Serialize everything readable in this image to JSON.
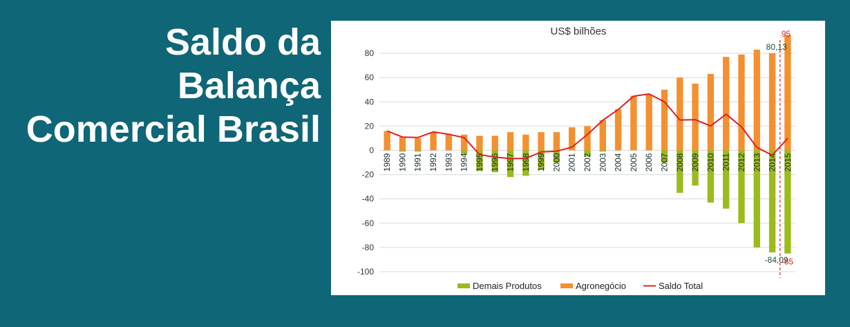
{
  "slide": {
    "title_lines": [
      "Saldo da",
      "Balança",
      "Comercial Brasil"
    ]
  },
  "chart_data": {
    "type": "bar",
    "title": "US$ bilhões",
    "categories": [
      "1989",
      "1990",
      "1991",
      "1992",
      "1993",
      "1994",
      "1995",
      "1996",
      "1997",
      "1998",
      "1999",
      "2000",
      "2001",
      "2002",
      "2003",
      "2004",
      "2005",
      "2006",
      "2007",
      "2008",
      "2009",
      "2010",
      "2011",
      "2012",
      "2013",
      "2014",
      "2015"
    ],
    "series": [
      {
        "name": "Demais Produtos",
        "kind": "bar",
        "color": "#9bbb1c",
        "values": [
          6,
          -1,
          -1,
          0,
          0,
          -3,
          -17,
          -18,
          -22,
          -21,
          -16,
          -10,
          4,
          -5,
          -1,
          0,
          6,
          3,
          -10,
          -35,
          -29,
          -43,
          -48,
          -60,
          -80,
          -84.09,
          -85
        ]
      },
      {
        "name": "Agronegócio",
        "kind": "bar",
        "color": "#f4902f",
        "values": [
          16,
          11,
          10,
          15,
          13,
          13,
          12,
          12,
          15,
          13,
          15,
          15,
          19,
          20,
          25,
          34,
          45,
          46,
          50,
          60,
          55,
          63,
          77,
          79,
          83,
          80.13,
          95
        ]
      },
      {
        "name": "Saldo Total",
        "kind": "line",
        "color": "#e0211e",
        "values": [
          16,
          11,
          10.6,
          15.2,
          13.3,
          10.5,
          -3.5,
          -5.6,
          -6.8,
          -6.6,
          -1.3,
          -0.7,
          2.6,
          13.1,
          24.8,
          33.7,
          44.7,
          46.5,
          40,
          25,
          25.3,
          20.1,
          29.8,
          19.4,
          2.4,
          -4,
          10
        ]
      }
    ],
    "ylim": [
      -100,
      100
    ],
    "yticks": [
      -100,
      -80,
      -60,
      -40,
      -20,
      0,
      20,
      40,
      60,
      80
    ],
    "legend": "bottom",
    "grid": true,
    "annotations": [
      {
        "category": "2014",
        "value": 80.13,
        "text": "80,13",
        "color": "#1a4b3f"
      },
      {
        "category": "2014",
        "value": -84.09,
        "text": "-84,09",
        "color": "#1a4b3f"
      },
      {
        "category": "2015",
        "value": 95,
        "text": "95",
        "color": "#e0211e"
      },
      {
        "category": "2015",
        "value": -85,
        "text": "-85",
        "color": "#e0211e"
      }
    ]
  }
}
